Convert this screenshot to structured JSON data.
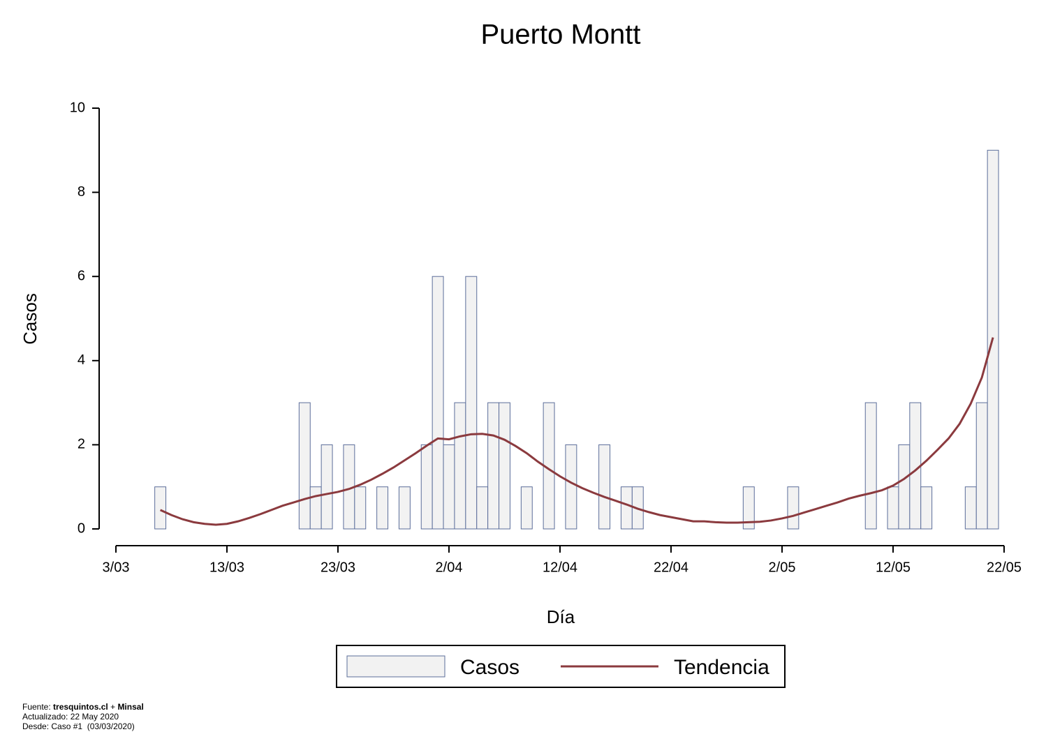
{
  "chart_data": {
    "type": "bar",
    "title": "Puerto Montt",
    "xlabel": "Día",
    "ylabel": "Casos",
    "xlim": [
      0,
      80
    ],
    "xticks": [
      {
        "value": 0,
        "label": "3/03"
      },
      {
        "value": 10,
        "label": "13/03"
      },
      {
        "value": 20,
        "label": "23/03"
      },
      {
        "value": 30,
        "label": "2/04"
      },
      {
        "value": 40,
        "label": "12/04"
      },
      {
        "value": 50,
        "label": "22/04"
      },
      {
        "value": 60,
        "label": "2/05"
      },
      {
        "value": 70,
        "label": "12/05"
      },
      {
        "value": 80,
        "label": "22/05"
      }
    ],
    "ylim": [
      0,
      10
    ],
    "yticks": [
      0,
      2,
      4,
      6,
      8,
      10
    ],
    "grid": false,
    "series": [
      {
        "name": "Casos",
        "type": "bar",
        "color": "#f2f2f2",
        "edge_color": "#5b6d9a",
        "x": [
          4,
          17,
          18,
          19,
          21,
          22,
          24,
          26,
          28,
          29,
          30,
          31,
          32,
          33,
          34,
          35,
          37,
          39,
          41,
          44,
          46,
          47,
          57,
          61,
          68,
          70,
          71,
          72,
          73,
          77,
          78,
          79
        ],
        "values": [
          1,
          3,
          1,
          2,
          2,
          1,
          1,
          1,
          2,
          6,
          2,
          3,
          6,
          1,
          3,
          3,
          1,
          3,
          2,
          2,
          1,
          1,
          1,
          1,
          3,
          1,
          2,
          3,
          1,
          1,
          3,
          9
        ]
      },
      {
        "name": "Tendencia",
        "type": "line",
        "color": "#8b3a3e",
        "x": [
          4,
          5,
          6,
          7,
          8,
          9,
          10,
          11,
          12,
          13,
          14,
          15,
          16,
          17,
          18,
          19,
          20,
          21,
          22,
          23,
          24,
          25,
          26,
          27,
          28,
          29,
          30,
          31,
          32,
          33,
          34,
          35,
          36,
          37,
          38,
          39,
          40,
          41,
          42,
          43,
          44,
          45,
          46,
          47,
          48,
          49,
          50,
          51,
          52,
          53,
          54,
          55,
          56,
          57,
          58,
          59,
          60,
          61,
          62,
          63,
          64,
          65,
          66,
          67,
          68,
          69,
          70,
          71,
          72,
          73,
          74,
          75,
          76,
          77,
          78,
          79
        ],
        "values": [
          0.45,
          0.33,
          0.23,
          0.16,
          0.12,
          0.1,
          0.12,
          0.18,
          0.26,
          0.35,
          0.45,
          0.55,
          0.63,
          0.71,
          0.78,
          0.83,
          0.88,
          0.95,
          1.05,
          1.17,
          1.31,
          1.46,
          1.63,
          1.8,
          1.98,
          2.15,
          2.13,
          2.2,
          2.25,
          2.26,
          2.22,
          2.12,
          1.97,
          1.8,
          1.6,
          1.42,
          1.25,
          1.1,
          0.97,
          0.86,
          0.76,
          0.67,
          0.58,
          0.48,
          0.4,
          0.33,
          0.28,
          0.23,
          0.18,
          0.18,
          0.16,
          0.15,
          0.15,
          0.16,
          0.17,
          0.2,
          0.25,
          0.31,
          0.39,
          0.47,
          0.55,
          0.63,
          0.72,
          0.79,
          0.85,
          0.92,
          1.03,
          1.19,
          1.39,
          1.62,
          1.88,
          2.15,
          2.5,
          2.98,
          3.6,
          4.55
        ]
      }
    ]
  },
  "footer": {
    "source_label": "Fuente:",
    "source_site": "tresquintos.cl",
    "source_sep": "+",
    "source_org": "Minsal",
    "updated": "Actualizado: 22 May 2020",
    "since": "Desde: Caso #1  (03/03/2020)"
  }
}
